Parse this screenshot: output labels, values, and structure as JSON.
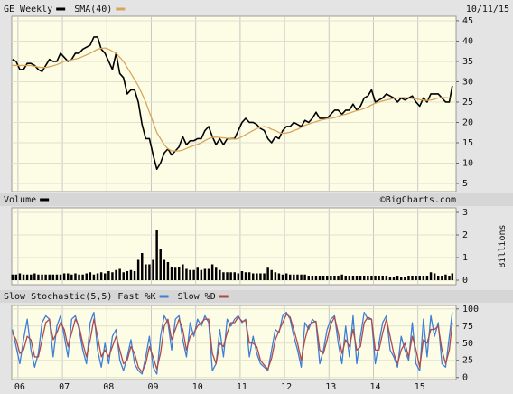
{
  "chart_data": {
    "type": "stock",
    "date": "10/11/15",
    "source": "©BigCharts.com",
    "x": [
      5.875,
      5.958,
      6.042,
      6.125,
      6.208,
      6.292,
      6.375,
      6.458,
      6.542,
      6.625,
      6.708,
      6.792,
      6.875,
      6.958,
      7.042,
      7.125,
      7.208,
      7.292,
      7.375,
      7.458,
      7.542,
      7.625,
      7.708,
      7.792,
      7.875,
      7.958,
      8.042,
      8.125,
      8.208,
      8.292,
      8.375,
      8.458,
      8.542,
      8.625,
      8.708,
      8.792,
      8.875,
      8.958,
      9.042,
      9.125,
      9.208,
      9.292,
      9.375,
      9.458,
      9.542,
      9.625,
      9.708,
      9.792,
      9.875,
      9.958,
      10.042,
      10.125,
      10.208,
      10.292,
      10.375,
      10.458,
      10.542,
      10.625,
      10.708,
      10.792,
      10.875,
      10.958,
      11.042,
      11.125,
      11.208,
      11.292,
      11.375,
      11.458,
      11.542,
      11.625,
      11.708,
      11.792,
      11.875,
      11.958,
      12.042,
      12.125,
      12.208,
      12.292,
      12.375,
      12.458,
      12.542,
      12.625,
      12.708,
      12.792,
      12.875,
      12.958,
      13.042,
      13.125,
      13.208,
      13.292,
      13.375,
      13.458,
      13.542,
      13.625,
      13.708,
      13.792,
      13.875,
      13.958,
      14.042,
      14.125,
      14.208,
      14.292,
      14.375,
      14.458,
      14.542,
      14.625,
      14.708,
      14.792,
      14.875,
      14.958,
      15.042,
      15.125,
      15.208,
      15.292,
      15.375,
      15.458,
      15.542,
      15.625,
      15.708,
      15.775
    ],
    "xlim": [
      5.86,
      15.86
    ],
    "xticks": [
      {
        "value": 6,
        "label": "06"
      },
      {
        "value": 7,
        "label": "07"
      },
      {
        "value": 8,
        "label": "08"
      },
      {
        "value": 9,
        "label": "09"
      },
      {
        "value": 10,
        "label": "10"
      },
      {
        "value": 11,
        "label": "11"
      },
      {
        "value": 12,
        "label": "12"
      },
      {
        "value": 13,
        "label": "13"
      },
      {
        "value": 14,
        "label": "14"
      },
      {
        "value": 15,
        "label": "15"
      }
    ],
    "grid": true,
    "panels": [
      {
        "ylim": [
          3,
          46.1
        ],
        "yticks": [
          5,
          10,
          15,
          20,
          25,
          30,
          35,
          40,
          45
        ],
        "series": [
          {
            "name": "GE Weekly",
            "type": "line",
            "color": "#000000",
            "values": [
              35.5,
              35,
              33,
              33,
              34.5,
              34.5,
              34,
              33,
              32.5,
              34,
              35.5,
              35,
              35,
              37,
              36,
              35,
              35.5,
              37,
              37,
              38,
              38.5,
              39,
              41,
              41,
              38,
              37,
              35,
              33,
              37,
              32,
              31,
              27,
              28,
              28,
              25,
              19.5,
              16,
              16,
              12,
              8.5,
              10,
              12.5,
              13.5,
              12,
              13,
              14,
              16.5,
              14.5,
              15.5,
              15.5,
              16,
              16,
              18,
              19,
              16.5,
              14.5,
              16,
              14.5,
              16,
              16,
              16,
              18,
              20,
              21,
              20,
              20,
              19.5,
              18.5,
              18,
              16,
              15,
              16.5,
              16,
              18,
              19,
              19,
              20,
              19.5,
              19,
              20.5,
              20,
              21,
              22.5,
              21,
              21,
              21,
              22,
              23,
              23,
              22,
              23,
              23,
              24.5,
              23,
              24,
              26,
              26.5,
              28,
              25,
              25.5,
              26,
              27,
              26.5,
              26,
              25,
              26,
              25.5,
              26,
              26.5,
              25,
              24,
              26,
              25,
              27,
              27,
              27,
              26,
              25,
              25,
              29
            ]
          },
          {
            "name": "SMA(40)",
            "type": "line",
            "color": "#d9a55a",
            "values": [
              34,
              34,
              34,
              34,
              34,
              34,
              33.8,
              33.6,
              33.5,
              33.5,
              33.7,
              33.9,
              34.2,
              34.6,
              35,
              35.2,
              35.4,
              35.6,
              35.8,
              36.2,
              36.6,
              37,
              37.5,
              38,
              38.2,
              38.3,
              38,
              37.5,
              37,
              36,
              35,
              33.5,
              32,
              30.5,
              29,
              27,
              25,
              22.5,
              20,
              17.5,
              16,
              14.5,
              13.5,
              13,
              13,
              13,
              13.2,
              13.6,
              14,
              14.3,
              14.6,
              15,
              15.5,
              16,
              16.3,
              16.4,
              16.3,
              16.2,
              16.1,
              16,
              15.9,
              16,
              16.5,
              17,
              17.5,
              18,
              18.5,
              18.8,
              19,
              18.8,
              18.3,
              18,
              17.5,
              17.3,
              17.4,
              17.6,
              18,
              18.3,
              18.8,
              19.3,
              19.6,
              19.9,
              20.2,
              20.5,
              20.7,
              20.9,
              21,
              21.2,
              21.5,
              21.8,
              22,
              22.3,
              22.6,
              22.9,
              23.1,
              23.4,
              23.8,
              24.3,
              24.7,
              25,
              25.3,
              25.5,
              25.7,
              25.9,
              26,
              26.1,
              26.1,
              26,
              25.9,
              25.8,
              25.6,
              25.5,
              25.4,
              25.5,
              25.7,
              26,
              26.1,
              26.1,
              26,
              26.1
            ]
          }
        ]
      },
      {
        "ylim": [
          -0.2,
          3.2
        ],
        "yticks": [
          0,
          1,
          2,
          3
        ],
        "ylabel": "Billions",
        "series": [
          {
            "name": "Volume",
            "type": "bar",
            "color": "#000000",
            "values": [
              0.25,
              0.25,
              0.3,
              0.25,
              0.25,
              0.25,
              0.3,
              0.25,
              0.25,
              0.25,
              0.25,
              0.25,
              0.25,
              0.25,
              0.3,
              0.3,
              0.25,
              0.3,
              0.25,
              0.25,
              0.3,
              0.35,
              0.25,
              0.3,
              0.35,
              0.3,
              0.4,
              0.35,
              0.45,
              0.5,
              0.35,
              0.4,
              0.45,
              0.4,
              0.9,
              1.2,
              0.7,
              0.7,
              0.9,
              2.2,
              1.4,
              0.9,
              0.8,
              0.6,
              0.55,
              0.6,
              0.7,
              0.5,
              0.45,
              0.45,
              0.55,
              0.45,
              0.5,
              0.5,
              0.7,
              0.55,
              0.45,
              0.35,
              0.35,
              0.35,
              0.35,
              0.3,
              0.4,
              0.35,
              0.35,
              0.3,
              0.3,
              0.3,
              0.3,
              0.55,
              0.45,
              0.35,
              0.3,
              0.25,
              0.3,
              0.25,
              0.25,
              0.25,
              0.25,
              0.25,
              0.2,
              0.2,
              0.2,
              0.2,
              0.2,
              0.2,
              0.2,
              0.2,
              0.2,
              0.25,
              0.2,
              0.2,
              0.2,
              0.2,
              0.2,
              0.2,
              0.2,
              0.2,
              0.2,
              0.2,
              0.2,
              0.2,
              0.15,
              0.15,
              0.2,
              0.15,
              0.15,
              0.2,
              0.2,
              0.2,
              0.2,
              0.2,
              0.2,
              0.35,
              0.3,
              0.2,
              0.2,
              0.25,
              0.2,
              0.3
            ]
          }
        ]
      },
      {
        "title": "Slow Stochastic(5,5)",
        "ylim": [
          -3,
          105
        ],
        "yticks": [
          0,
          25,
          50,
          75,
          100
        ],
        "series": [
          {
            "name": "Fast %K",
            "type": "line",
            "color": "#3d7fd6",
            "values": [
              70,
              45,
              20,
              55,
              85,
              40,
              15,
              35,
              80,
              90,
              85,
              30,
              75,
              90,
              60,
              30,
              85,
              90,
              70,
              40,
              20,
              80,
              95,
              40,
              15,
              50,
              20,
              60,
              70,
              25,
              10,
              30,
              55,
              20,
              10,
              5,
              30,
              60,
              15,
              5,
              60,
              90,
              80,
              40,
              85,
              90,
              55,
              30,
              80,
              60,
              85,
              75,
              90,
              80,
              10,
              20,
              70,
              30,
              85,
              75,
              85,
              90,
              80,
              85,
              30,
              60,
              35,
              20,
              15,
              10,
              40,
              70,
              65,
              90,
              95,
              85,
              60,
              40,
              15,
              80,
              70,
              85,
              80,
              20,
              40,
              70,
              85,
              90,
              50,
              20,
              75,
              30,
              90,
              20,
              60,
              95,
              85,
              85,
              20,
              50,
              80,
              90,
              40,
              30,
              15,
              60,
              40,
              25,
              80,
              20,
              10,
              85,
              30,
              90,
              60,
              80,
              20,
              15,
              60,
              95
            ]
          },
          {
            "name": "Slow %D",
            "type": "line",
            "color": "#b04a4a",
            "values": [
              65,
              55,
              35,
              40,
              60,
              55,
              30,
              30,
              55,
              80,
              85,
              55,
              65,
              80,
              70,
              45,
              65,
              85,
              75,
              50,
              30,
              55,
              85,
              60,
              30,
              40,
              30,
              45,
              60,
              40,
              20,
              25,
              45,
              35,
              15,
              8,
              20,
              45,
              30,
              12,
              35,
              75,
              85,
              55,
              70,
              85,
              70,
              40,
              60,
              65,
              75,
              80,
              85,
              85,
              35,
              20,
              50,
              45,
              65,
              80,
              80,
              88,
              82,
              83,
              50,
              50,
              45,
              25,
              18,
              12,
              28,
              55,
              68,
              80,
              92,
              88,
              70,
              50,
              25,
              55,
              75,
              80,
              82,
              40,
              35,
              55,
              78,
              88,
              65,
              35,
              55,
              45,
              70,
              40,
              45,
              80,
              88,
              85,
              40,
              40,
              65,
              85,
              60,
              35,
              20,
              40,
              50,
              30,
              60,
              40,
              15,
              55,
              50,
              70,
              70,
              75,
              40,
              20,
              40,
              80
            ]
          }
        ]
      }
    ]
  }
}
